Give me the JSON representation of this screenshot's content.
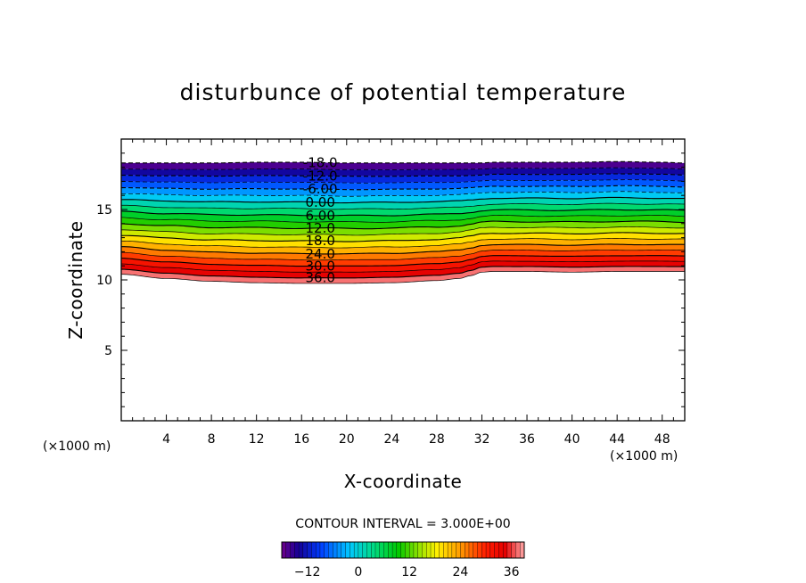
{
  "chart_data": {
    "type": "contour",
    "title": "disturbunce of potential temperature",
    "xlabel": "X-coordinate",
    "ylabel": "Z-coordinate",
    "x_unit": "(×1000 m)",
    "x_unit_right": "(×1000 m)",
    "xlim": [
      0,
      50
    ],
    "ylim": [
      0,
      20
    ],
    "x_ticks": [
      4,
      8,
      12,
      16,
      20,
      24,
      28,
      32,
      36,
      40,
      44,
      48
    ],
    "y_ticks": [
      5,
      10,
      15
    ],
    "contour_interval_text": "CONTOUR INTERVAL = 3.000E+00",
    "contour_interval": 3.0,
    "field_range": [
      -18,
      39
    ],
    "contour_labels": [
      "-18.0",
      "-12.0",
      "-6.00",
      "0.00",
      "6.00",
      "12.0",
      "18.0",
      "24.0",
      "30.0",
      "36.0"
    ],
    "colorbar": {
      "ticks": [
        -12,
        0,
        12,
        24,
        36
      ],
      "tick_labels": [
        "−12",
        "0",
        "12",
        "24",
        "36"
      ],
      "min": -18,
      "max": 39
    },
    "layer_profiles": {
      "description": "z (km) of field levels along x (km)",
      "x": [
        0,
        4,
        8,
        12,
        16,
        20,
        24,
        28,
        30,
        31,
        32,
        33,
        36,
        40,
        44,
        48,
        50
      ],
      "z_bottom_39": [
        10.4,
        10.1,
        9.9,
        9.8,
        9.75,
        9.75,
        9.8,
        9.95,
        10.1,
        10.3,
        10.55,
        10.6,
        10.6,
        10.55,
        10.6,
        10.6,
        10.6
      ],
      "z_top_-18": [
        18.3,
        18.3,
        18.3,
        18.35,
        18.35,
        18.3,
        18.3,
        18.3,
        18.3,
        18.3,
        18.3,
        18.35,
        18.35,
        18.35,
        18.4,
        18.35,
        18.3
      ]
    }
  }
}
